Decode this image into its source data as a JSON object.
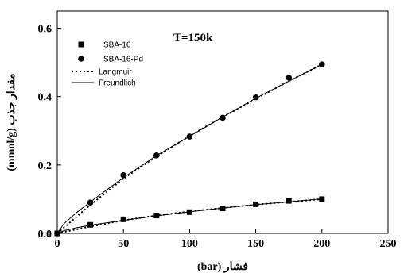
{
  "chart_data": {
    "type": "scatter",
    "title": "",
    "annotation": "T=150k",
    "xlabel": "فشار (bar)",
    "ylabel": "مقدار جذب (mmol/g)",
    "xlim": [
      0,
      250
    ],
    "ylim": [
      0,
      0.65
    ],
    "x_ticks": [
      0,
      50,
      100,
      150,
      200,
      250
    ],
    "x_tick_labels": [
      "0",
      "50",
      "100",
      "150",
      "200",
      "250"
    ],
    "y_ticks": [
      0.0,
      0.2,
      0.4,
      0.6
    ],
    "y_tick_labels": [
      "0.0",
      "0.2",
      "0.4",
      "0.6"
    ],
    "grid": false,
    "legend_position": "top-left",
    "series": [
      {
        "name": "SBA-16",
        "kind": "points",
        "marker": "square",
        "x": [
          0,
          25,
          50,
          75,
          100,
          125,
          150,
          175,
          200
        ],
        "y": [
          0,
          0.025,
          0.041,
          0.052,
          0.062,
          0.073,
          0.085,
          0.095,
          0.1
        ]
      },
      {
        "name": "SBA-16-Pd",
        "kind": "points",
        "marker": "circle",
        "x": [
          0,
          25,
          50,
          75,
          100,
          125,
          150,
          175,
          200
        ],
        "y": [
          0,
          0.09,
          0.17,
          0.228,
          0.283,
          0.338,
          0.398,
          0.455,
          0.494
        ]
      },
      {
        "name": "Langmuir",
        "kind": "line",
        "dash": "dotted",
        "curves": [
          {
            "x": [
              0,
              25,
              50,
              75,
              100,
              125,
              150,
              175,
              200
            ],
            "y": [
              0,
              0.02,
              0.038,
              0.052,
              0.064,
              0.074,
              0.084,
              0.092,
              0.1
            ]
          },
          {
            "x": [
              0,
              25,
              50,
              75,
              100,
              125,
              150,
              175,
              200
            ],
            "y": [
              0,
              0.083,
              0.16,
              0.225,
              0.285,
              0.34,
              0.393,
              0.445,
              0.494
            ]
          }
        ]
      },
      {
        "name": "Freundlich",
        "kind": "line",
        "dash": "solid",
        "curves": [
          {
            "x": [
              0,
              5,
              15,
              25,
              50,
              75,
              100,
              125,
              150,
              175,
              200
            ],
            "y": [
              0,
              0.008,
              0.017,
              0.024,
              0.038,
              0.051,
              0.063,
              0.074,
              0.084,
              0.092,
              0.101
            ]
          },
          {
            "x": [
              0,
              5,
              15,
              25,
              50,
              75,
              100,
              125,
              150,
              175,
              200
            ],
            "y": [
              0,
              0.028,
              0.062,
              0.092,
              0.163,
              0.227,
              0.284,
              0.34,
              0.395,
              0.445,
              0.494
            ]
          }
        ]
      }
    ]
  }
}
